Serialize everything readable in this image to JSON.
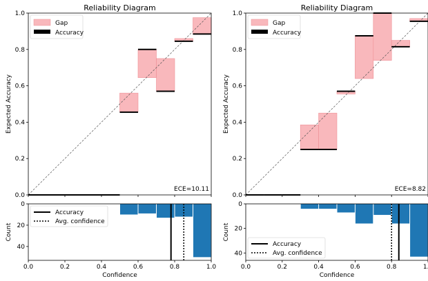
{
  "chart_data": [
    {
      "type": "bar",
      "title": "Reliability Diagram",
      "ylabel": "Expected Accuracy",
      "xlim": [
        0,
        1
      ],
      "ylim": [
        0,
        1
      ],
      "xticks": [
        "0.0",
        "0.2",
        "0.4",
        "0.6",
        "0.8",
        "1.0"
      ],
      "yticks": [
        "0.0",
        "0.2",
        "0.4",
        "0.6",
        "0.8",
        "1.0"
      ],
      "legend": {
        "position": "top-left",
        "gap_label": "Gap",
        "accuracy_label": "Accuracy"
      },
      "ece_label": "ECE=10.11",
      "bins": [
        {
          "lo": 0.0,
          "hi": 0.1,
          "confidence": 0.05,
          "accuracy": 0.0
        },
        {
          "lo": 0.1,
          "hi": 0.2,
          "confidence": 0.15,
          "accuracy": 0.0
        },
        {
          "lo": 0.2,
          "hi": 0.3,
          "confidence": 0.25,
          "accuracy": 0.0
        },
        {
          "lo": 0.3,
          "hi": 0.4,
          "confidence": 0.35,
          "accuracy": 0.0
        },
        {
          "lo": 0.4,
          "hi": 0.5,
          "confidence": 0.45,
          "accuracy": 0.0
        },
        {
          "lo": 0.5,
          "hi": 0.6,
          "confidence": 0.56,
          "accuracy": 0.455
        },
        {
          "lo": 0.6,
          "hi": 0.7,
          "confidence": 0.645,
          "accuracy": 0.8
        },
        {
          "lo": 0.7,
          "hi": 0.8,
          "confidence": 0.75,
          "accuracy": 0.57
        },
        {
          "lo": 0.8,
          "hi": 0.9,
          "confidence": 0.86,
          "accuracy": 0.845
        },
        {
          "lo": 0.9,
          "hi": 1.0,
          "confidence": 0.975,
          "accuracy": 0.885
        }
      ],
      "histogram": {
        "xlabel": "Confidence",
        "ylabel": "Count",
        "ylim": [
          53,
          0
        ],
        "yticks": [
          "0",
          "20",
          "40"
        ],
        "counts": [
          0,
          0,
          0,
          0,
          0,
          10,
          9,
          13,
          12,
          50
        ],
        "accuracy_line": 0.78,
        "avg_confidence_line": 0.85,
        "legend": {
          "position": "top-left",
          "accuracy_label": "Accuracy",
          "confidence_label": "Avg. confidence"
        }
      }
    },
    {
      "type": "bar",
      "title": "Reliability Diagram",
      "ylabel": "Expected Accuracy",
      "xlim": [
        0,
        1
      ],
      "ylim": [
        0,
        1
      ],
      "xticks": [
        "0.0",
        "0.2",
        "0.4",
        "0.6",
        "0.8",
        "1.0"
      ],
      "yticks": [
        "0.0",
        "0.2",
        "0.4",
        "0.6",
        "0.8",
        "1.0"
      ],
      "legend": {
        "position": "top-left",
        "gap_label": "Gap",
        "accuracy_label": "Accuracy"
      },
      "ece_label": "ECE=8.82",
      "bins": [
        {
          "lo": 0.0,
          "hi": 0.1,
          "confidence": 0.05,
          "accuracy": 0.0
        },
        {
          "lo": 0.1,
          "hi": 0.2,
          "confidence": 0.15,
          "accuracy": 0.0
        },
        {
          "lo": 0.2,
          "hi": 0.3,
          "confidence": 0.25,
          "accuracy": 0.0
        },
        {
          "lo": 0.3,
          "hi": 0.4,
          "confidence": 0.385,
          "accuracy": 0.25
        },
        {
          "lo": 0.4,
          "hi": 0.5,
          "confidence": 0.45,
          "accuracy": 0.25
        },
        {
          "lo": 0.5,
          "hi": 0.6,
          "confidence": 0.555,
          "accuracy": 0.57
        },
        {
          "lo": 0.6,
          "hi": 0.7,
          "confidence": 0.64,
          "accuracy": 0.875
        },
        {
          "lo": 0.7,
          "hi": 0.8,
          "confidence": 0.74,
          "accuracy": 1.0
        },
        {
          "lo": 0.8,
          "hi": 0.9,
          "confidence": 0.85,
          "accuracy": 0.815
        },
        {
          "lo": 0.9,
          "hi": 1.0,
          "confidence": 0.97,
          "accuracy": 0.955
        }
      ],
      "histogram": {
        "xlabel": "Confidence",
        "ylabel": "Count",
        "ylim": [
          46,
          0
        ],
        "yticks": [
          "0",
          "20",
          "40"
        ],
        "counts": [
          0,
          0,
          0,
          4,
          4,
          7,
          16,
          9,
          16,
          43
        ],
        "accuracy_line": 0.84,
        "avg_confidence_line": 0.8,
        "legend": {
          "position": "bottom-left",
          "accuracy_label": "Accuracy",
          "confidence_label": "Avg. confidence"
        }
      }
    }
  ]
}
